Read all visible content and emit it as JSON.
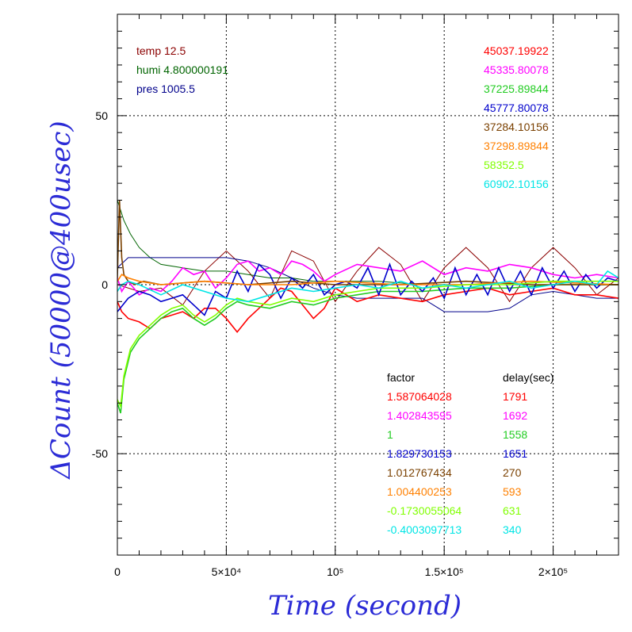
{
  "chart_data": {
    "type": "line",
    "title": "",
    "xlabel": "Time (second)",
    "ylabel": "ΔCount (50000@400usec)",
    "xlim": [
      0,
      230000
    ],
    "ylim": [
      -80,
      80
    ],
    "grid": true,
    "x_ticks": [
      {
        "value": 0,
        "label": "0"
      },
      {
        "value": 50000,
        "label": "5×10⁴"
      },
      {
        "value": 100000,
        "label": "10⁵"
      },
      {
        "value": 150000,
        "label": "1.5×10⁵"
      },
      {
        "value": 200000,
        "label": "2×10⁵"
      }
    ],
    "y_ticks": [
      {
        "value": -50,
        "label": "-50"
      },
      {
        "value": 0,
        "label": "0"
      },
      {
        "value": 50,
        "label": "50"
      }
    ],
    "env_annotations": [
      {
        "text": "temp 12.5",
        "color": "#8b0000"
      },
      {
        "text": "humi 4.800000191",
        "color": "#006400"
      },
      {
        "text": "pres 1005.5",
        "color": "#00008b"
      }
    ],
    "base_counts": [
      {
        "text": "45037.19922",
        "color": "#ff0000"
      },
      {
        "text": "45335.80078",
        "color": "#ff00ff"
      },
      {
        "text": "37225.89844",
        "color": "#22cc22"
      },
      {
        "text": "45777.80078",
        "color": "#0000cc"
      },
      {
        "text": "37284.10156",
        "color": "#7a4000"
      },
      {
        "text": "37298.89844",
        "color": "#ff8000"
      },
      {
        "text": "58352.5",
        "color": "#80ff00"
      },
      {
        "text": "60902.10156",
        "color": "#00e5e5"
      }
    ],
    "table_headers": {
      "factor": "factor",
      "delay": "delay(sec)"
    },
    "series": [
      {
        "factor": "1.587064028",
        "delay": "1791",
        "color": "#ff0000",
        "x": [
          0,
          2000,
          5000,
          10000,
          15000,
          20000,
          25000,
          30000,
          35000,
          40000,
          45000,
          50000,
          55000,
          60000,
          65000,
          70000,
          75000,
          80000,
          85000,
          90000,
          95000,
          100000,
          110000,
          120000,
          130000,
          140000,
          150000,
          160000,
          170000,
          180000,
          190000,
          200000,
          210000,
          220000,
          230000
        ],
        "values": [
          -5,
          -8,
          -10,
          -11,
          -13,
          -10,
          -9,
          -8,
          -10,
          -7,
          -7,
          -10,
          -14,
          -10,
          -7,
          -4,
          -1,
          -2,
          -6,
          -10,
          -7,
          -1,
          -5,
          -3,
          -4,
          -5,
          -3,
          -2,
          -1,
          -3,
          -2,
          -1,
          -3,
          -3,
          -4
        ]
      },
      {
        "factor": "1.402843595",
        "delay": "1692",
        "color": "#ff00ff",
        "x": [
          0,
          2000,
          5000,
          10000,
          15000,
          20000,
          25000,
          30000,
          35000,
          40000,
          45000,
          50000,
          55000,
          60000,
          65000,
          70000,
          75000,
          80000,
          85000,
          90000,
          95000,
          100000,
          110000,
          120000,
          130000,
          140000,
          150000,
          160000,
          170000,
          180000,
          190000,
          200000,
          210000,
          220000,
          230000
        ],
        "values": [
          2,
          -2,
          1,
          -3,
          -1,
          -2,
          1,
          5,
          3,
          4,
          -1,
          2,
          6,
          7,
          4,
          5,
          3,
          7,
          6,
          4,
          1,
          3,
          6,
          5,
          4,
          7,
          3,
          5,
          4,
          6,
          5,
          3,
          2,
          3,
          2
        ]
      },
      {
        "factor": "1",
        "delay": "1558",
        "color": "#22cc22",
        "x": [
          0,
          1500,
          3000,
          6000,
          10000,
          15000,
          20000,
          25000,
          30000,
          35000,
          40000,
          45000,
          50000,
          55000,
          60000,
          70000,
          80000,
          90000,
          100000,
          110000,
          120000,
          140000,
          160000,
          180000,
          200000,
          230000
        ],
        "values": [
          -35,
          -38,
          -28,
          -20,
          -16,
          -13,
          -10,
          -8,
          -7,
          -10,
          -12,
          -10,
          -7,
          -5,
          -6,
          -7,
          -5,
          -6,
          -4,
          -3,
          -2,
          -2,
          -1,
          -1,
          0,
          0
        ]
      },
      {
        "factor": "1.829730153",
        "delay": "1651",
        "color": "#0000cc",
        "x": [
          0,
          5000,
          10000,
          15000,
          20000,
          25000,
          30000,
          35000,
          40000,
          45000,
          50000,
          55000,
          60000,
          65000,
          70000,
          75000,
          80000,
          85000,
          90000,
          95000,
          100000,
          105000,
          110000,
          115000,
          120000,
          125000,
          130000,
          135000,
          140000,
          145000,
          150000,
          155000,
          160000,
          165000,
          170000,
          175000,
          180000,
          185000,
          190000,
          195000,
          200000,
          205000,
          210000,
          215000,
          220000,
          225000,
          230000
        ],
        "values": [
          -8,
          -4,
          -2,
          -3,
          -5,
          -4,
          -3,
          -6,
          -9,
          -2,
          -4,
          4,
          -2,
          6,
          3,
          -4,
          2,
          -1,
          3,
          -3,
          0,
          1,
          -1,
          5,
          -3,
          6,
          -3,
          1,
          -2,
          2,
          -4,
          5,
          -3,
          3,
          -3,
          5,
          -2,
          4,
          -3,
          5,
          -1,
          4,
          -2,
          3,
          -1,
          2,
          1
        ]
      },
      {
        "factor": "1.012767434",
        "delay": "270",
        "color": "#7a4000",
        "x": [
          0,
          1000,
          2000,
          3000,
          5000,
          8000,
          12000,
          20000,
          40000,
          60000,
          80000,
          100000,
          130000,
          160000,
          190000,
          230000
        ],
        "values": [
          2,
          25,
          8,
          3,
          1,
          0,
          1,
          0,
          1,
          0,
          1,
          0,
          0,
          1,
          0,
          0
        ]
      },
      {
        "factor": "1.004400253",
        "delay": "593",
        "color": "#ff8000",
        "x": [
          0,
          2000,
          5000,
          10000,
          20000,
          40000,
          60000,
          80000,
          100000,
          130000,
          160000,
          190000,
          230000
        ],
        "values": [
          1,
          3,
          2,
          1,
          0,
          1,
          0,
          0,
          1,
          0,
          0,
          1,
          0
        ]
      },
      {
        "factor": "-0.1730055064",
        "delay": "631",
        "color": "#80ff00",
        "x": [
          0,
          1500,
          3000,
          6000,
          10000,
          15000,
          20000,
          25000,
          30000,
          35000,
          40000,
          45000,
          50000,
          55000,
          60000,
          70000,
          80000,
          90000,
          100000,
          110000,
          120000,
          140000,
          160000,
          180000,
          200000,
          230000
        ],
        "values": [
          -34,
          -36,
          -27,
          -19,
          -15,
          -12,
          -9,
          -7,
          -6,
          -9,
          -11,
          -9,
          -6,
          -4,
          -5,
          -6,
          -4,
          -5,
          -3,
          -2,
          -1,
          -1,
          0,
          0,
          1,
          1
        ]
      },
      {
        "factor": "-0.4003097713",
        "delay": "340",
        "color": "#00e5e5",
        "x": [
          0,
          2000,
          5000,
          10000,
          20000,
          30000,
          40000,
          50000,
          60000,
          70000,
          80000,
          90000,
          100000,
          110000,
          120000,
          130000,
          140000,
          150000,
          160000,
          170000,
          180000,
          190000,
          200000,
          210000,
          220000,
          225000,
          230000
        ],
        "values": [
          -2,
          0,
          1,
          0,
          -3,
          0,
          -2,
          -4,
          -5,
          -3,
          -1,
          -2,
          -1,
          0,
          -1,
          1,
          -1,
          0,
          -1,
          0,
          1,
          -1,
          0,
          1,
          0,
          4,
          2
        ]
      }
    ],
    "environment_series": [
      {
        "name": "temp",
        "color": "#8b0000",
        "x": [
          0,
          10000,
          20000,
          30000,
          40000,
          50000,
          60000,
          70000,
          80000,
          90000,
          100000,
          110000,
          120000,
          130000,
          140000,
          150000,
          160000,
          170000,
          180000,
          190000,
          200000,
          210000,
          220000,
          230000
        ],
        "values": [
          0,
          -2,
          -1,
          -6,
          4,
          10,
          4,
          -4,
          10,
          7,
          -5,
          4,
          11,
          6,
          -5,
          5,
          11,
          5,
          -5,
          5,
          11,
          5,
          -3,
          2
        ]
      },
      {
        "name": "humi",
        "color": "#006400",
        "x": [
          0,
          500,
          1500,
          3000,
          6000,
          10000,
          15000,
          20000,
          30000,
          40000,
          50000,
          60000,
          70000,
          80000,
          90000,
          100000,
          120000,
          140000,
          160000,
          180000,
          200000,
          220000,
          230000
        ],
        "values": [
          25,
          24,
          22,
          19,
          15,
          11,
          8,
          6,
          5,
          4,
          4,
          3,
          2,
          2,
          1,
          1,
          1,
          0,
          0,
          0,
          0,
          0,
          0
        ]
      },
      {
        "name": "pres",
        "color": "#00008b",
        "x": [
          0,
          5000,
          10000,
          20000,
          30000,
          40000,
          50000,
          60000,
          70000,
          80000,
          90000,
          100000,
          110000,
          120000,
          130000,
          140000,
          150000,
          160000,
          170000,
          180000,
          190000,
          200000,
          210000,
          220000,
          230000
        ],
        "values": [
          5,
          8,
          8,
          8,
          8,
          8,
          8,
          7,
          5,
          2,
          -1,
          -3,
          -4,
          -4,
          -4,
          -4,
          -8,
          -8,
          -8,
          -7,
          -3,
          -2,
          -3,
          -4,
          -4
        ]
      }
    ]
  }
}
